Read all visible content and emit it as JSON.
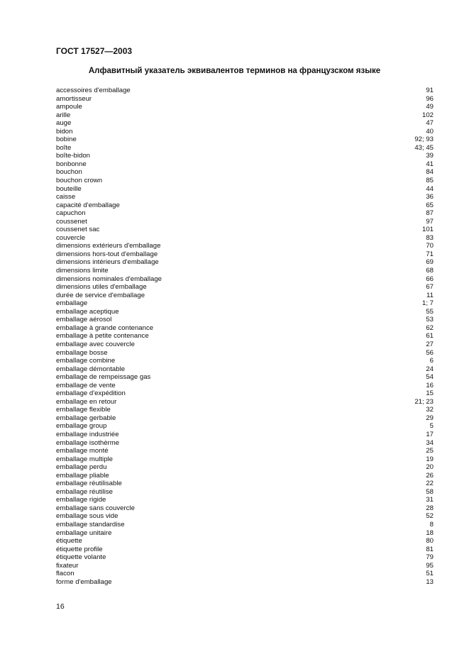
{
  "header": "ГОСТ 17527—2003",
  "title": "Алфавитный указатель эквивалентов терминов на французском языке",
  "entries": [
    {
      "term": "accessoires d'emballage",
      "ref": "91"
    },
    {
      "term": "amortisseur",
      "ref": "96"
    },
    {
      "term": "ampoule",
      "ref": "49"
    },
    {
      "term": "arille",
      "ref": "102"
    },
    {
      "term": "auge",
      "ref": "47"
    },
    {
      "term": "bidon",
      "ref": "40"
    },
    {
      "term": "bobine",
      "ref": "92; 93"
    },
    {
      "term": "boîte",
      "ref": "43; 45"
    },
    {
      "term": "boîte-bidon",
      "ref": "39"
    },
    {
      "term": "bonbonne",
      "ref": "41"
    },
    {
      "term": "bouchon",
      "ref": "84"
    },
    {
      "term": "bouchon crown",
      "ref": "85"
    },
    {
      "term": "bouteille",
      "ref": "44"
    },
    {
      "term": "caisse",
      "ref": "36"
    },
    {
      "term": "capacité d'emballage",
      "ref": "65"
    },
    {
      "term": "capuchon",
      "ref": "87"
    },
    {
      "term": "coussenet",
      "ref": "97"
    },
    {
      "term": "coussenet sac",
      "ref": "101"
    },
    {
      "term": "couvercle",
      "ref": "83"
    },
    {
      "term": "dimensions extérieurs d'emballage",
      "ref": "70"
    },
    {
      "term": "dimensions hors-tout d'emballage",
      "ref": "71"
    },
    {
      "term": "dimensions intérieurs d'emballage",
      "ref": "69"
    },
    {
      "term": "dimensions limite",
      "ref": "68"
    },
    {
      "term": "dimensions nominales d'emballage",
      "ref": "66"
    },
    {
      "term": "dimensions utiles d'emballage",
      "ref": "67"
    },
    {
      "term": "durée de service d'emballage",
      "ref": "11"
    },
    {
      "term": "emballage",
      "ref": "1; 7"
    },
    {
      "term": "emballage aceptique",
      "ref": "55"
    },
    {
      "term": "emballage aérosol",
      "ref": "53"
    },
    {
      "term": "emballage à grande contenance",
      "ref": "62"
    },
    {
      "term": "emballage à petite contenance",
      "ref": "61"
    },
    {
      "term": "emballage avec couvercle",
      "ref": "27"
    },
    {
      "term": "emballage bosse",
      "ref": "56"
    },
    {
      "term": "emballage combine",
      "ref": "6"
    },
    {
      "term": "emballage démontable",
      "ref": "24"
    },
    {
      "term": "emballage de rempeissage gas",
      "ref": "54"
    },
    {
      "term": "emballage de vente",
      "ref": "16"
    },
    {
      "term": "emballage d'expédition",
      "ref": "15"
    },
    {
      "term": "emballage en retour",
      "ref": "21; 23"
    },
    {
      "term": "emballage flexible",
      "ref": "32"
    },
    {
      "term": "emballage gerbable",
      "ref": "29"
    },
    {
      "term": "emballage group",
      "ref": "5"
    },
    {
      "term": "emballage industriée",
      "ref": "17"
    },
    {
      "term": "emballage isothèrme",
      "ref": "34"
    },
    {
      "term": "emballage monté",
      "ref": "25"
    },
    {
      "term": "emballage multiple",
      "ref": "19"
    },
    {
      "term": "emballage perdu",
      "ref": "20"
    },
    {
      "term": "emballage pliable",
      "ref": "26"
    },
    {
      "term": "emballage réutilisable",
      "ref": "22"
    },
    {
      "term": "emballage réutilise",
      "ref": "58"
    },
    {
      "term": "emballage rigide",
      "ref": "31"
    },
    {
      "term": "emballage sans couvercle",
      "ref": "28"
    },
    {
      "term": "emballage sous vide",
      "ref": "52"
    },
    {
      "term": "emballage standardise",
      "ref": "8"
    },
    {
      "term": "emballage unitaire",
      "ref": "18"
    },
    {
      "term": "étiquette",
      "ref": "80"
    },
    {
      "term": "étiquette profile",
      "ref": "81"
    },
    {
      "term": "étiquette volante",
      "ref": "79"
    },
    {
      "term": "fixateur",
      "ref": "95"
    },
    {
      "term": "flacon",
      "ref": "51"
    },
    {
      "term": "forme d'emballage",
      "ref": "13"
    }
  ],
  "page_number": "16"
}
